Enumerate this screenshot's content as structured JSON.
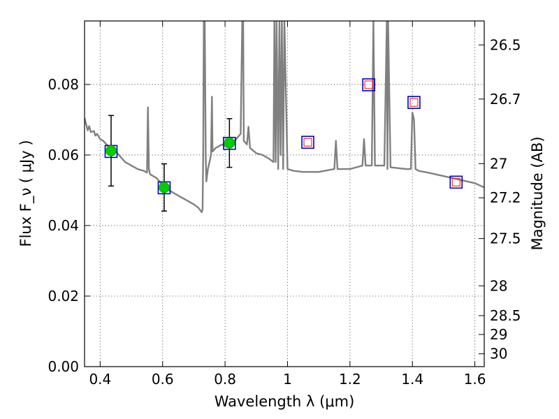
{
  "chart_data": {
    "type": "line",
    "title": "",
    "xlabel": "Wavelength  λ (μm)",
    "ylabel": "Flux  F_ν  ( μJy )",
    "ylabel_right": "Magnitude (AB)",
    "xlim": [
      0.35,
      1.63
    ],
    "ylim": [
      0.0,
      0.098
    ],
    "grid": true,
    "x_ticks": [
      0.4,
      0.6,
      0.8,
      1.0,
      1.2,
      1.4,
      1.6
    ],
    "x_tick_labels": [
      "0.4",
      "0.6",
      "0.8",
      "1",
      "1.2",
      "1.4",
      "1.6"
    ],
    "y_ticks": [
      0.0,
      0.02,
      0.04,
      0.06,
      0.08
    ],
    "y_tick_labels": [
      "0.00",
      "0.02",
      "0.04",
      "0.06",
      "0.08"
    ],
    "mag_ticks": [
      26.5,
      26.7,
      27,
      27.2,
      27.5,
      28,
      28.5,
      29,
      30
    ],
    "mag_tick_labels": [
      "26.5",
      "26.7",
      "27",
      "27.2",
      "27.5",
      "28",
      "28.5",
      "29",
      "30"
    ],
    "spectrum_color": "#808080",
    "observed_color": "#00cc00",
    "model_box_color": "#0000cc",
    "upper_limit_color": "#ee3333",
    "model_spectrum": {
      "name": "",
      "x": [
        0.35,
        0.36,
        0.365,
        0.37,
        0.38,
        0.385,
        0.39,
        0.4,
        0.41,
        0.42,
        0.43,
        0.44,
        0.45,
        0.46,
        0.47,
        0.48,
        0.5,
        0.52,
        0.54,
        0.55,
        0.553,
        0.556,
        0.56,
        0.58,
        0.6,
        0.62,
        0.64,
        0.66,
        0.68,
        0.7,
        0.715,
        0.725,
        0.728,
        0.73,
        0.732,
        0.735,
        0.738,
        0.74,
        0.745,
        0.75,
        0.755,
        0.758,
        0.76,
        0.77,
        0.78,
        0.79,
        0.8,
        0.81,
        0.82,
        0.83,
        0.84,
        0.85,
        0.855,
        0.858,
        0.86,
        0.87,
        0.875,
        0.88,
        0.9,
        0.92,
        0.94,
        0.955,
        0.958,
        0.962,
        0.965,
        0.97,
        0.974,
        0.978,
        0.982,
        0.986,
        0.99,
        1.0,
        1.02,
        1.05,
        1.08,
        1.1,
        1.15,
        1.155,
        1.16,
        1.2,
        1.24,
        1.245,
        1.25,
        1.255,
        1.27,
        1.275,
        1.28,
        1.3,
        1.31,
        1.318,
        1.32,
        1.322,
        1.33,
        1.38,
        1.395,
        1.4,
        1.405,
        1.41,
        1.42,
        1.45,
        1.5,
        1.55,
        1.6,
        1.63
      ],
      "y": [
        0.0705,
        0.067,
        0.0682,
        0.0665,
        0.0668,
        0.0655,
        0.066,
        0.0645,
        0.064,
        0.063,
        0.0623,
        0.0615,
        0.061,
        0.06,
        0.059,
        0.058,
        0.057,
        0.056,
        0.0555,
        0.055,
        0.0735,
        0.056,
        0.0545,
        0.0535,
        0.0515,
        0.05,
        0.049,
        0.048,
        0.047,
        0.046,
        0.045,
        0.0438,
        0.0445,
        0.06,
        0.098,
        0.098,
        0.06,
        0.0525,
        0.056,
        0.058,
        0.06,
        0.0765,
        0.061,
        0.062,
        0.0625,
        0.063,
        0.0625,
        0.0632,
        0.063,
        0.064,
        0.065,
        0.066,
        0.098,
        0.098,
        0.064,
        0.063,
        0.068,
        0.062,
        0.0605,
        0.06,
        0.059,
        0.058,
        0.098,
        0.058,
        0.098,
        0.056,
        0.098,
        0.06,
        0.098,
        0.056,
        0.098,
        0.056,
        0.0555,
        0.0552,
        0.0552,
        0.0552,
        0.056,
        0.064,
        0.056,
        0.056,
        0.057,
        0.0645,
        0.057,
        0.057,
        0.057,
        0.098,
        0.057,
        0.057,
        0.057,
        0.098,
        0.056,
        0.098,
        0.0565,
        0.056,
        0.056,
        0.072,
        0.07,
        0.056,
        0.0555,
        0.055,
        0.054,
        0.053,
        0.052,
        0.0508
      ]
    },
    "model_photometry": {
      "x": [
        0.435,
        0.605,
        0.814,
        1.065,
        1.26,
        1.405,
        1.54
      ],
      "y": [
        0.061,
        0.0507,
        0.0633,
        0.0636,
        0.0799,
        0.0749,
        0.0523
      ]
    },
    "observed": {
      "x": [
        0.435,
        0.605,
        0.814
      ],
      "y": [
        0.0612,
        0.0508,
        0.0634
      ],
      "yerr": [
        0.01,
        0.0067,
        0.0069
      ]
    },
    "upper_limits": {
      "x": [
        1.065,
        1.26,
        1.405,
        1.54
      ],
      "y": [
        0.0636,
        0.0799,
        0.0749,
        0.0523
      ]
    }
  }
}
